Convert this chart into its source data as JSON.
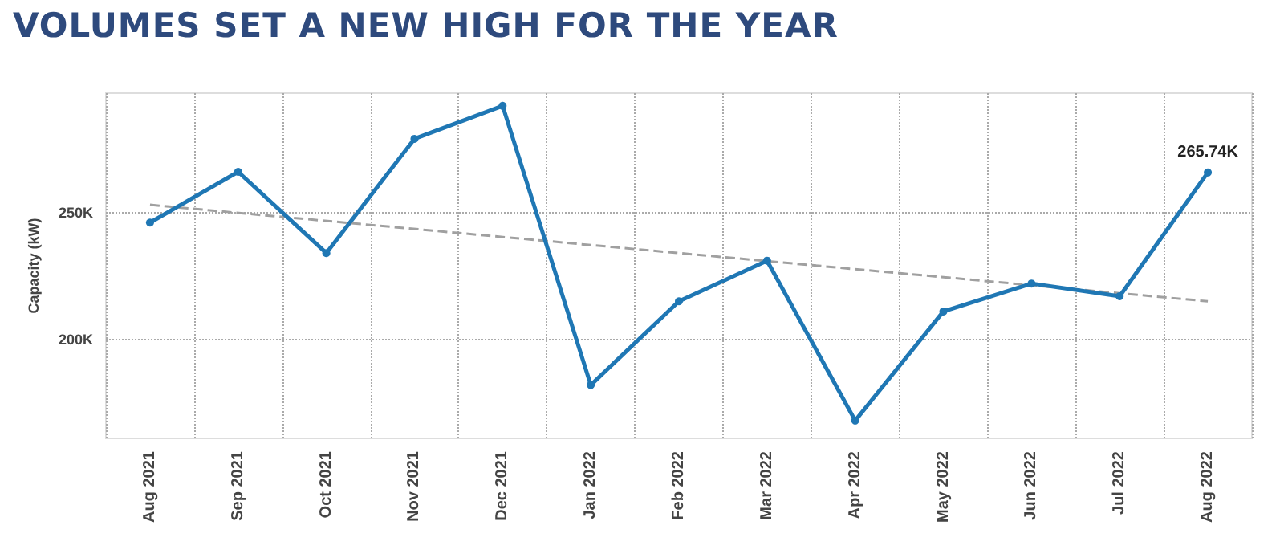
{
  "chart_data": {
    "type": "line",
    "title": "VOLUMES SET A NEW HIGH FOR THE YEAR",
    "ylabel": "Capacity (kW)",
    "categories": [
      "Aug 2021",
      "Sep 2021",
      "Oct 2021",
      "Nov 2021",
      "Dec 2021",
      "Jan 2022",
      "Feb 2022",
      "Mar 2022",
      "Apr 2022",
      "May 2022",
      "Jun 2022",
      "Jul 2022",
      "Aug 2022"
    ],
    "series": [
      {
        "color": "#1f77b4",
        "marker": "circle",
        "line_style": "solid",
        "values": [
          246000,
          266000,
          234000,
          279000,
          292000,
          182000,
          215000,
          231000,
          168000,
          211000,
          222000,
          217000,
          265740
        ],
        "value_labels": [
          null,
          null,
          null,
          null,
          null,
          null,
          null,
          null,
          null,
          null,
          null,
          null,
          "265.74K"
        ]
      },
      {
        "type": "line",
        "color": "#a0a0a0",
        "marker": "none",
        "line_style": "dashed",
        "x": [
          "Aug 2021",
          "Aug 2022"
        ],
        "values": [
          253000,
          215000
        ]
      }
    ],
    "ylim": [
      161000,
      297000
    ],
    "yticks": [
      {
        "value": 200000,
        "label": "200K"
      },
      {
        "value": 250000,
        "label": "250K"
      }
    ],
    "grid": true
  }
}
